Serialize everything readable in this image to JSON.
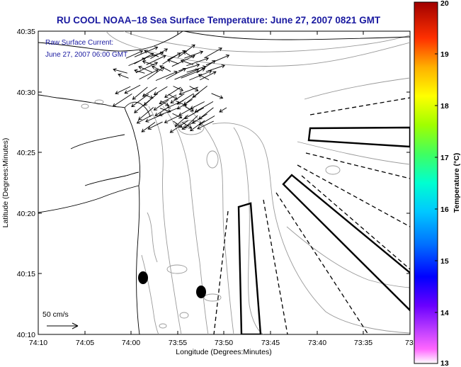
{
  "title": "RU COOL   NOAA–18  Sea Surface Temperature:  June 27, 2007 0821 GMT",
  "annotation": {
    "line1": "Raw Surface Current:",
    "line2": "June 27, 2007 06:00 GMT"
  },
  "scale_label": "50 cm/s",
  "axes": {
    "xlabel": "Longitude (Degrees:Minutes)",
    "ylabel": "Latitude (Degrees:Minutes)",
    "xticks": [
      "74:10",
      "74:05",
      "74:00",
      "73:55",
      "73:50",
      "73:45",
      "73:40",
      "73:35",
      "73:3"
    ],
    "yticks": [
      "40:35",
      "40:30",
      "40:25",
      "40:20",
      "40:15",
      "40:10"
    ]
  },
  "colorbar": {
    "label": "Temperature (°C)",
    "ticks": [
      "20",
      "19",
      "18",
      "17",
      "16",
      "15",
      "14",
      "13"
    ],
    "min": 13,
    "max": 20
  },
  "colors": {
    "title": "#1a1aa0",
    "contour": "#9a9a9a",
    "coast": "#000000"
  }
}
